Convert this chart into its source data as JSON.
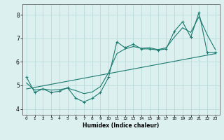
{
  "title": "",
  "xlabel": "Humidex (Indice chaleur)",
  "ylabel": "",
  "bg_color": "#ddf0f0",
  "line_color": "#1a7a6e",
  "grid_color": "#b8dada",
  "xlim": [
    -0.5,
    23.5
  ],
  "ylim": [
    3.75,
    8.45
  ],
  "x_ticks": [
    0,
    1,
    2,
    3,
    4,
    5,
    6,
    7,
    8,
    9,
    10,
    11,
    12,
    13,
    14,
    15,
    16,
    17,
    18,
    19,
    20,
    21,
    22,
    23
  ],
  "y_ticks": [
    4,
    5,
    6,
    7,
    8
  ],
  "data_x": [
    0,
    1,
    2,
    3,
    4,
    5,
    6,
    7,
    8,
    9,
    10,
    11,
    12,
    13,
    14,
    15,
    16,
    17,
    18,
    19,
    20,
    21,
    22,
    23
  ],
  "data_y": [
    5.35,
    4.7,
    4.85,
    4.7,
    4.75,
    4.9,
    4.45,
    4.3,
    4.45,
    4.7,
    5.35,
    6.85,
    6.6,
    6.75,
    6.55,
    6.55,
    6.5,
    6.55,
    7.3,
    7.7,
    7.05,
    8.1,
    6.4,
    6.4
  ],
  "trend_x": [
    0,
    23
  ],
  "trend_y": [
    4.85,
    6.35
  ],
  "smooth_x": [
    0,
    1,
    2,
    3,
    4,
    5,
    6,
    7,
    8,
    9,
    10,
    11,
    12,
    13,
    14,
    15,
    16,
    17,
    18,
    19,
    20,
    21,
    22,
    23
  ],
  "smooth_y": [
    5.1,
    4.8,
    4.85,
    4.8,
    4.82,
    4.88,
    4.78,
    4.65,
    4.72,
    4.95,
    5.55,
    6.35,
    6.55,
    6.65,
    6.58,
    6.6,
    6.52,
    6.6,
    7.05,
    7.45,
    7.25,
    7.92,
    7.15,
    6.52
  ],
  "xlabel_fontsize": 5.5,
  "ylabel_fontsize": 5.5,
  "tick_fontsize_x": 4.2,
  "tick_fontsize_y": 5.5
}
